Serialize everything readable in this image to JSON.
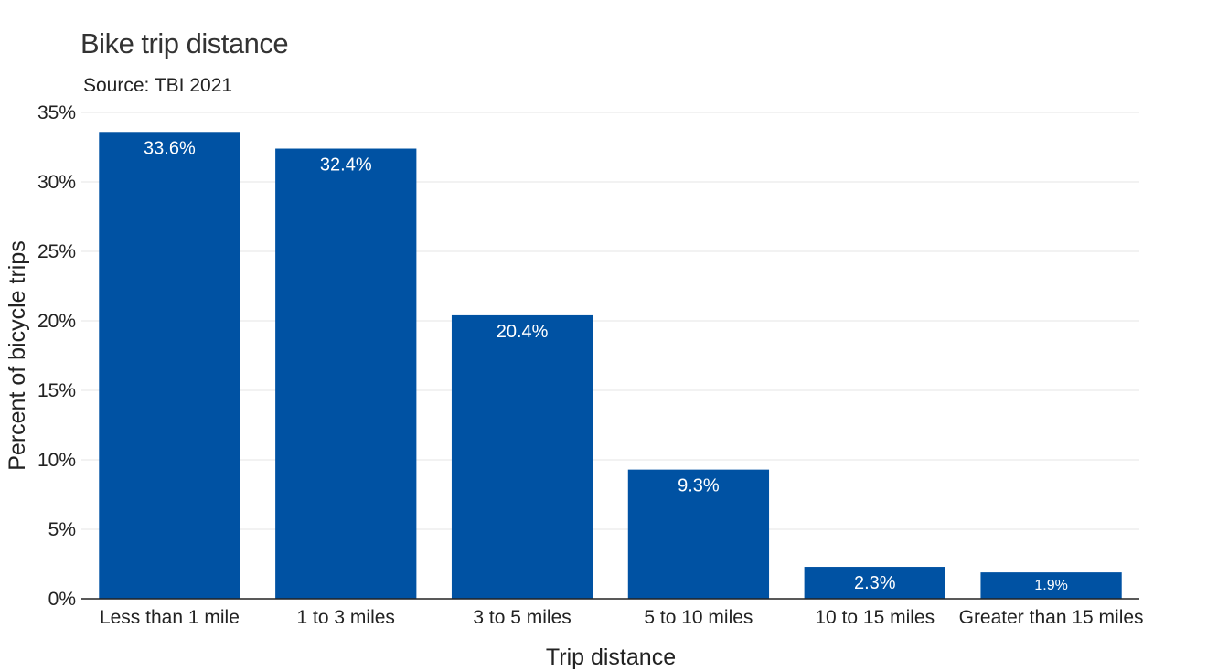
{
  "chart_data": {
    "type": "bar",
    "title": "Bike trip distance",
    "subtitle": "Source: TBI 2021",
    "xlabel": "Trip distance",
    "ylabel": "Percent of bicycle trips",
    "categories": [
      "Less than 1 mile",
      "1 to 3 miles",
      "3 to 5 miles",
      "5 to 10 miles",
      "10 to 15 miles",
      "Greater than 15 miles"
    ],
    "values": [
      33.6,
      32.4,
      20.4,
      9.3,
      2.3,
      1.9
    ],
    "data_labels": [
      "33.6%",
      "32.4%",
      "20.4%",
      "9.3%",
      "2.3%",
      "1.9%"
    ],
    "y_ticks": [
      0,
      5,
      10,
      15,
      20,
      25,
      30,
      35
    ],
    "y_tick_labels": [
      "0%",
      "5%",
      "10%",
      "15%",
      "20%",
      "25%",
      "30%",
      "35%"
    ],
    "ylim": [
      0,
      35
    ],
    "grid": true,
    "legend": "none",
    "bar_color": "#0052a3",
    "label_color": "#ffffff"
  }
}
